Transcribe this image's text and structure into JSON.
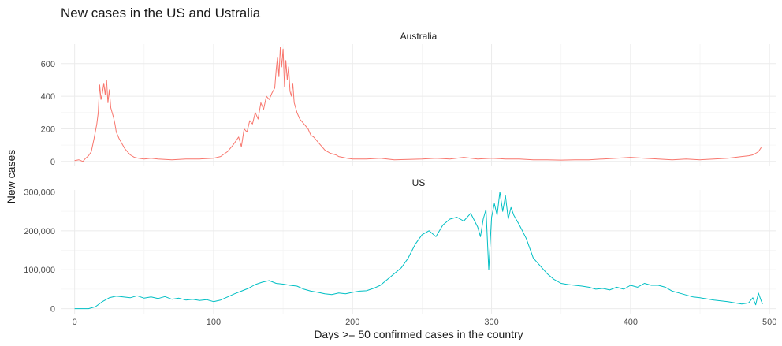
{
  "chart_data": {
    "type": "line",
    "title": "New cases in the US and Ustralia",
    "xlabel": "Days >= 50 confirmed cases in the country",
    "ylabel": "New cases",
    "xlim": [
      -10,
      505
    ],
    "x_ticks": [
      0,
      100,
      200,
      300,
      400,
      500
    ],
    "grid": true,
    "facets": [
      {
        "name": "Australia",
        "color": "#F8766D",
        "ylim": [
          -30,
          720
        ],
        "y_ticks": [
          0,
          200,
          400,
          600
        ],
        "y_tick_labels": [
          "0",
          "200",
          "400",
          "600"
        ],
        "x": [
          0,
          3,
          6,
          8,
          10,
          12,
          14,
          16,
          17,
          18,
          19,
          20,
          21,
          22,
          23,
          24,
          25,
          26,
          27,
          28,
          29,
          30,
          32,
          34,
          36,
          38,
          40,
          43,
          46,
          50,
          55,
          60,
          70,
          80,
          90,
          100,
          105,
          110,
          114,
          118,
          120,
          122,
          124,
          126,
          128,
          130,
          132,
          134,
          136,
          138,
          140,
          142,
          144,
          145,
          146,
          147,
          148,
          149,
          150,
          151,
          152,
          153,
          154,
          155,
          156,
          157,
          158,
          159,
          160,
          162,
          164,
          166,
          168,
          170,
          172,
          174,
          176,
          178,
          180,
          182,
          184,
          186,
          188,
          190,
          193,
          196,
          200,
          210,
          220,
          230,
          240,
          250,
          260,
          270,
          280,
          290,
          300,
          310,
          320,
          330,
          340,
          350,
          360,
          370,
          380,
          390,
          400,
          410,
          420,
          430,
          440,
          450,
          460,
          470,
          480,
          485,
          488,
          490,
          492,
          494
        ],
        "y": [
          5,
          10,
          0,
          20,
          35,
          60,
          140,
          230,
          300,
          470,
          380,
          420,
          480,
          410,
          500,
          360,
          440,
          330,
          300,
          270,
          230,
          180,
          140,
          110,
          80,
          60,
          40,
          25,
          20,
          15,
          20,
          15,
          10,
          15,
          15,
          20,
          30,
          60,
          100,
          150,
          90,
          200,
          180,
          250,
          230,
          300,
          260,
          360,
          320,
          400,
          380,
          420,
          450,
          560,
          640,
          520,
          700,
          580,
          690,
          460,
          620,
          500,
          580,
          430,
          400,
          480,
          360,
          330,
          300,
          260,
          240,
          220,
          200,
          160,
          150,
          130,
          110,
          90,
          70,
          60,
          50,
          45,
          40,
          30,
          25,
          20,
          15,
          15,
          20,
          10,
          12,
          15,
          20,
          15,
          25,
          15,
          20,
          15,
          15,
          10,
          10,
          8,
          10,
          10,
          15,
          20,
          25,
          20,
          15,
          10,
          15,
          10,
          15,
          20,
          30,
          35,
          40,
          50,
          60,
          85
        ]
      },
      {
        "name": "US",
        "color": "#00BFC4",
        "ylim": [
          -15000,
          305000
        ],
        "y_ticks": [
          0,
          100000,
          200000,
          300000
        ],
        "y_tick_labels": [
          "0",
          "100,000",
          "200,000",
          "300,000"
        ],
        "x": [
          0,
          10,
          15,
          20,
          25,
          30,
          35,
          40,
          45,
          50,
          55,
          60,
          65,
          70,
          75,
          80,
          85,
          90,
          95,
          100,
          105,
          110,
          115,
          120,
          125,
          130,
          135,
          140,
          145,
          150,
          155,
          160,
          165,
          170,
          175,
          180,
          185,
          190,
          195,
          200,
          205,
          210,
          215,
          220,
          225,
          230,
          235,
          240,
          245,
          250,
          255,
          260,
          265,
          270,
          275,
          280,
          285,
          290,
          292,
          294,
          296,
          298,
          300,
          302,
          304,
          306,
          308,
          310,
          312,
          314,
          316,
          320,
          325,
          330,
          335,
          340,
          345,
          350,
          355,
          360,
          365,
          370,
          375,
          380,
          385,
          390,
          395,
          400,
          405,
          410,
          415,
          420,
          425,
          430,
          435,
          440,
          445,
          450,
          455,
          460,
          465,
          470,
          475,
          480,
          485,
          488,
          490,
          492,
          494,
          495
        ],
        "y": [
          0,
          0,
          5000,
          18000,
          28000,
          32000,
          30000,
          28000,
          33000,
          27000,
          30000,
          26000,
          31000,
          24000,
          27000,
          22000,
          24000,
          21000,
          23000,
          18000,
          22000,
          30000,
          38000,
          45000,
          52000,
          62000,
          68000,
          72000,
          65000,
          63000,
          60000,
          58000,
          50000,
          45000,
          42000,
          38000,
          36000,
          40000,
          38000,
          42000,
          45000,
          46000,
          52000,
          60000,
          75000,
          90000,
          105000,
          130000,
          165000,
          190000,
          200000,
          185000,
          215000,
          230000,
          235000,
          225000,
          245000,
          210000,
          185000,
          230000,
          255000,
          100000,
          235000,
          270000,
          240000,
          300000,
          250000,
          290000,
          230000,
          260000,
          240000,
          215000,
          180000,
          130000,
          110000,
          90000,
          75000,
          65000,
          62000,
          60000,
          58000,
          55000,
          50000,
          52000,
          48000,
          55000,
          50000,
          60000,
          55000,
          65000,
          60000,
          60000,
          55000,
          45000,
          40000,
          35000,
          30000,
          28000,
          25000,
          22000,
          20000,
          18000,
          15000,
          12000,
          15000,
          28000,
          10000,
          40000,
          20000,
          12000
        ]
      }
    ]
  }
}
